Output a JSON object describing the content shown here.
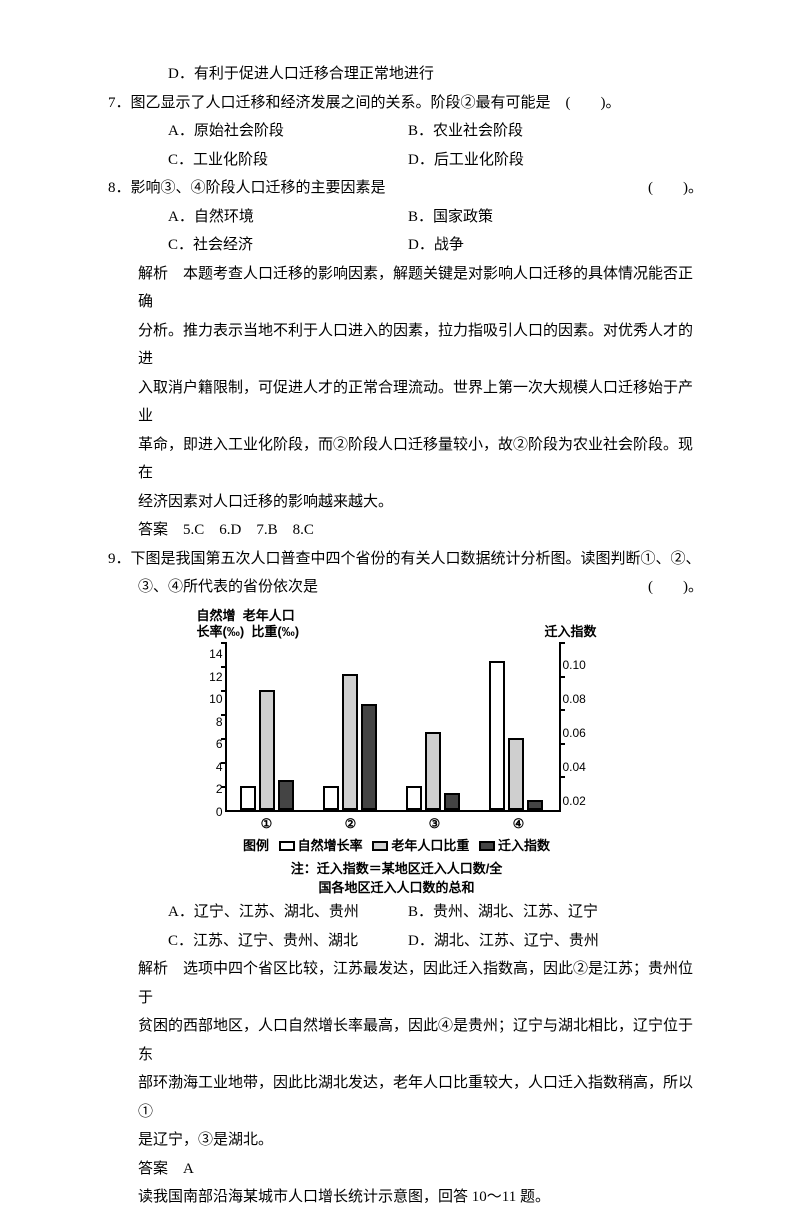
{
  "l_d": "D．有利于促进人口迁移合理正常地进行",
  "q7": "7．图乙显示了人口迁移和经济发展之间的关系。阶段②最有可能是　(　　)。",
  "q7a": "A．原始社会阶段",
  "q7b": "B．农业社会阶段",
  "q7c": "C．工业化阶段",
  "q7d": "D．后工业化阶段",
  "q8": "8．影响③、④阶段人口迁移的主要因素是",
  "q8p": "(　　)。",
  "q8a": "A．自然环境",
  "q8b": "B．国家政策",
  "q8c": "C．社会经济",
  "q8d": "D．战争",
  "exp1": "解析　本题考查人口迁移的影响因素，解题关键是对影响人口迁移的具体情况能否正确",
  "exp2": "分析。推力表示当地不利于人口进入的因素，拉力指吸引人口的因素。对优秀人才的进",
  "exp3": "入取消户籍限制，可促进人才的正常合理流动。世界上第一次大规模人口迁移始于产业",
  "exp4": "革命，即进入工业化阶段，而②阶段人口迁移量较小，故②阶段为农业社会阶段。现在",
  "exp5": "经济因素对人口迁移的影响越来越大。",
  "ans58": "答案　5.C　6.D　7.B　8.C",
  "q9a": "9．下图是我国第五次人口普查中四个省份的有关人口数据统计分析图。读图判断①、②、",
  "q9b": "③、④所代表的省份依次是",
  "q9p": "(　　)。",
  "chart": {
    "yl_title1": "自然增",
    "yl_title2": "长率(‰)",
    "yc_title1": "老年人口",
    "yc_title2": "比重(‰)",
    "yr_title1": "迁入指数",
    "yl_ticks": [
      "14",
      "12",
      "10",
      "8",
      "6",
      "4",
      "2",
      "0"
    ],
    "yr_ticks": [
      "0.10",
      "0.08",
      "0.06",
      "0.04",
      "0.02"
    ],
    "x": [
      "①",
      "②",
      "③",
      "④"
    ],
    "bars": [
      {
        "growth": 2,
        "elderly": 10,
        "migration": 0.018
      },
      {
        "growth": 2,
        "elderly": 11.3,
        "migration": 0.063
      },
      {
        "growth": 2,
        "elderly": 6.5,
        "migration": 0.01
      },
      {
        "growth": 12.4,
        "elderly": 6,
        "migration": 0.006
      }
    ],
    "y_max": 14,
    "m_max": 0.1,
    "legend1": "自然增长率",
    "legend2": "老年人口比重",
    "legend3": "迁入指数",
    "legend_prefix": "图例",
    "note1": "注：迁入指数＝某地区迁入人口数/全",
    "note2": "国各地区迁入人口数的总和"
  },
  "o9a": "A．辽宁、江苏、湖北、贵州",
  "o9b": "B．贵州、湖北、江苏、辽宁",
  "o9c": "C．江苏、辽宁、贵州、湖北",
  "o9d": "D．湖北、江苏、辽宁、贵州",
  "ex9_1": "解析　选项中四个省区比较，江苏最发达，因此迁入指数高，因此②是江苏；贵州位于",
  "ex9_2": "贫困的西部地区，人口自然增长率最高，因此④是贵州；辽宁与湖北相比，辽宁位于东",
  "ex9_3": "部环渤海工业地带，因此比湖北发达，老年人口比重较大，人口迁入指数稍高，所以①",
  "ex9_4": "是辽宁，③是湖北。",
  "ans9": "答案　A",
  "next": "读我国南部沿海某城市人口增长统计示意图，回答 10～11 题。"
}
